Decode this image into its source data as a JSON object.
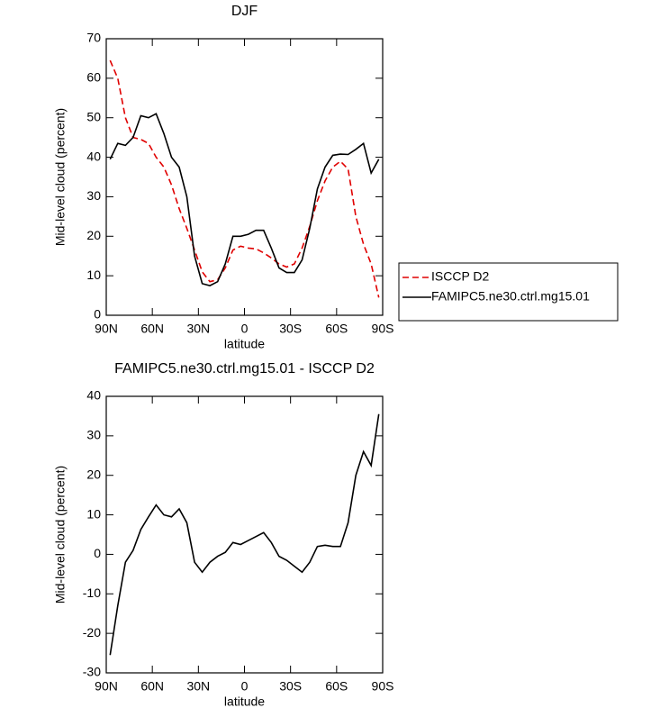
{
  "chart_data": [
    {
      "type": "line",
      "title": "DJF",
      "xlabel": "latitude",
      "ylabel": "Mid-level cloud (percent)",
      "x": [
        87.5,
        82.5,
        77.5,
        72.5,
        67.5,
        62.5,
        57.5,
        52.5,
        47.5,
        42.5,
        37.5,
        32.5,
        27.5,
        22.5,
        17.5,
        12.5,
        7.5,
        2.5,
        -2.5,
        -7.5,
        -12.5,
        -17.5,
        -22.5,
        -27.5,
        -32.5,
        -37.5,
        -42.5,
        -47.5,
        -52.5,
        -57.5,
        -62.5,
        -67.5,
        -72.5,
        -77.5,
        -82.5,
        -87.5
      ],
      "series": [
        {
          "name": "ISCCP D2",
          "color": "#e00000",
          "dashed": true,
          "values": [
            64.5,
            60,
            50,
            45,
            44.5,
            43.5,
            40,
            37.5,
            33,
            27,
            22,
            16.5,
            11,
            8.5,
            9,
            12,
            16.5,
            17.5,
            17,
            16.8,
            15.8,
            14.5,
            13,
            12.2,
            13,
            17,
            22.5,
            29,
            34,
            37.5,
            39,
            37,
            25,
            18,
            13,
            4.5
          ]
        },
        {
          "name": "FAMIPC5.ne30.ctrl.mg15.01",
          "color": "#000000",
          "dashed": false,
          "values": [
            39.5,
            43.5,
            43,
            45,
            50.5,
            50,
            51,
            46,
            40,
            37.5,
            30,
            15,
            8,
            7.5,
            8.5,
            13,
            20,
            20,
            20.5,
            21.5,
            21.5,
            17,
            12,
            10.8,
            10.8,
            14,
            22,
            32,
            37.5,
            40.5,
            40.8,
            40.7,
            42,
            43.5,
            36,
            39.5
          ]
        }
      ],
      "xlim": [
        90,
        -90
      ],
      "xticks": [
        {
          "value": 90,
          "label": "90N"
        },
        {
          "value": 60,
          "label": "60N"
        },
        {
          "value": 30,
          "label": "30N"
        },
        0,
        {
          "value": -30,
          "label": "30S"
        },
        {
          "value": -60,
          "label": "60S"
        },
        {
          "value": -90,
          "label": "90S"
        }
      ],
      "ylim": [
        0,
        70
      ],
      "yticks": [
        0,
        10,
        20,
        30,
        40,
        50,
        60,
        70
      ],
      "legend": "outside-right"
    },
    {
      "type": "line",
      "title": "FAMIPC5.ne30.ctrl.mg15.01 - ISCCP D2",
      "xlabel": "latitude",
      "ylabel": "Mid-level cloud (percent)",
      "x": [
        87.5,
        82.5,
        77.5,
        72.5,
        67.5,
        62.5,
        57.5,
        52.5,
        47.5,
        42.5,
        37.5,
        32.5,
        27.5,
        22.5,
        17.5,
        12.5,
        7.5,
        2.5,
        -2.5,
        -7.5,
        -12.5,
        -17.5,
        -22.5,
        -27.5,
        -32.5,
        -37.5,
        -42.5,
        -47.5,
        -52.5,
        -57.5,
        -62.5,
        -67.5,
        -72.5,
        -77.5,
        -82.5,
        -87.5
      ],
      "series": [
        {
          "color": "#000000",
          "dashed": false,
          "values": [
            -25.5,
            -13,
            -2,
            1,
            6.3,
            9.5,
            12.5,
            10,
            9.5,
            11.5,
            8,
            -2,
            -4.5,
            -2,
            -0.5,
            0.5,
            3,
            2.5,
            3.5,
            4.5,
            5.5,
            3,
            -0.5,
            -1.5,
            -3,
            -4.5,
            -2,
            2,
            2.3,
            2,
            2,
            8,
            20,
            26,
            22.5,
            35.5
          ]
        }
      ],
      "xlim": [
        90,
        -90
      ],
      "xticks": [
        {
          "value": 90,
          "label": "90N"
        },
        {
          "value": 60,
          "label": "60N"
        },
        {
          "value": 30,
          "label": "30N"
        },
        0,
        {
          "value": -30,
          "label": "30S"
        },
        {
          "value": -60,
          "label": "60S"
        },
        {
          "value": -90,
          "label": "90S"
        }
      ],
      "ylim": [
        -30,
        40
      ],
      "yticks": [
        -30,
        -20,
        -10,
        0,
        10,
        20,
        30,
        40
      ]
    }
  ]
}
